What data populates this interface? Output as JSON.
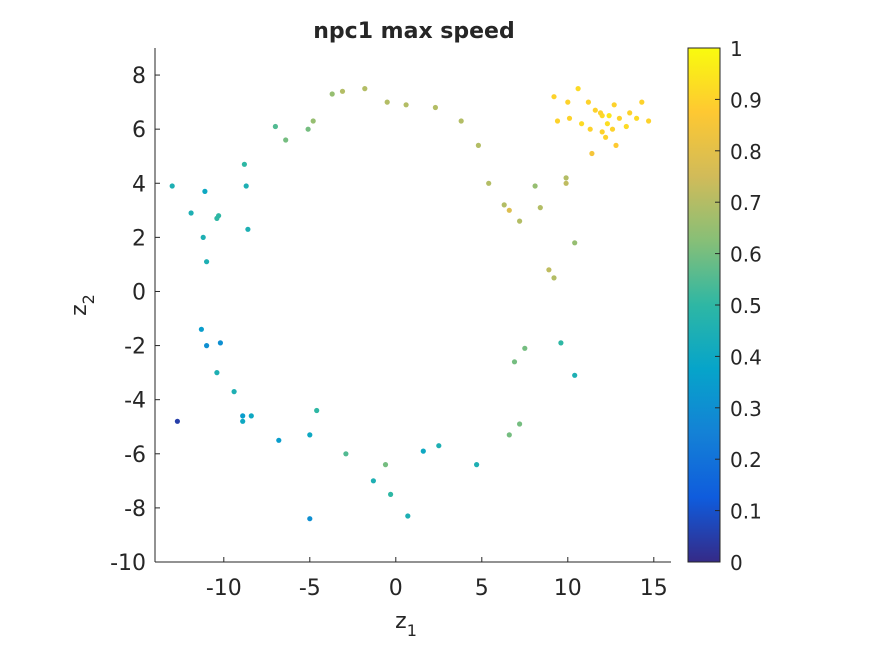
{
  "chart_data": {
    "type": "scatter",
    "title": "npc1 max speed",
    "xlabel": "z",
    "xlabel_sub": "1",
    "ylabel": "z",
    "ylabel_sub": "2",
    "xlim": [
      -14,
      16
    ],
    "ylim": [
      -10,
      9
    ],
    "xticks": [
      -10,
      -5,
      0,
      5,
      10,
      15
    ],
    "xtick_labels": [
      "-10",
      "-5",
      "0",
      "5",
      "10",
      "15"
    ],
    "yticks": [
      -10,
      -8,
      -6,
      -4,
      -2,
      0,
      2,
      4,
      6,
      8
    ],
    "ytick_labels": [
      "-10",
      "-8",
      "-6",
      "-4",
      "-2",
      "0",
      "2",
      "4",
      "6",
      "8"
    ],
    "grid": false,
    "colormap": "parula",
    "colorbar": {
      "range": [
        0,
        1
      ],
      "ticks": [
        0,
        0.1,
        0.2,
        0.3,
        0.4,
        0.5,
        0.6,
        0.7,
        0.8,
        0.9,
        1
      ],
      "tick_labels": [
        "0",
        "0.1",
        "0.2",
        "0.3",
        "0.4",
        "0.5",
        "0.6",
        "0.7",
        "0.8",
        "0.9",
        "1"
      ],
      "colors": [
        "#352a87",
        "#0f5cdd",
        "#1481d6",
        "#06a4ca",
        "#2eb7a4",
        "#87bf77",
        "#d1bb59",
        "#fec832",
        "#f9fb0e"
      ]
    },
    "series": [
      {
        "points": [
          [
            -12.7,
            -4.8,
            0.05
          ],
          [
            -5.0,
            -8.4,
            0.3
          ],
          [
            0.7,
            -8.3,
            0.45
          ],
          [
            -1.3,
            -7.0,
            0.45
          ],
          [
            -0.3,
            -7.5,
            0.5
          ],
          [
            -6.8,
            -5.5,
            0.35
          ],
          [
            -5.0,
            -5.3,
            0.4
          ],
          [
            -8.9,
            -4.6,
            0.35
          ],
          [
            -8.4,
            -4.6,
            0.4
          ],
          [
            -8.9,
            -4.8,
            0.4
          ],
          [
            -10.4,
            -3.0,
            0.45
          ],
          [
            -9.4,
            -3.7,
            0.45
          ],
          [
            -10.2,
            -1.9,
            0.3
          ],
          [
            -11.3,
            -1.4,
            0.35
          ],
          [
            -11.0,
            -2.0,
            0.3
          ],
          [
            -13.0,
            3.9,
            0.45
          ],
          [
            -11.9,
            2.9,
            0.45
          ],
          [
            -11.2,
            2.0,
            0.45
          ],
          [
            -11.1,
            3.7,
            0.4
          ],
          [
            -11.0,
            1.1,
            0.45
          ],
          [
            -10.4,
            2.7,
            0.5
          ],
          [
            -10.3,
            2.8,
            0.5
          ],
          [
            -8.8,
            4.7,
            0.5
          ],
          [
            -8.7,
            3.9,
            0.45
          ],
          [
            -8.6,
            2.3,
            0.45
          ],
          [
            -7.0,
            6.1,
            0.55
          ],
          [
            -6.4,
            5.6,
            0.6
          ],
          [
            -5.1,
            6.0,
            0.6
          ],
          [
            -4.8,
            6.3,
            0.65
          ],
          [
            -3.7,
            7.3,
            0.65
          ],
          [
            -3.1,
            7.4,
            0.7
          ],
          [
            -1.8,
            7.5,
            0.7
          ],
          [
            -0.5,
            7.0,
            0.7
          ],
          [
            0.6,
            6.9,
            0.7
          ],
          [
            2.3,
            6.8,
            0.7
          ],
          [
            3.8,
            6.3,
            0.7
          ],
          [
            4.8,
            5.4,
            0.7
          ],
          [
            5.4,
            4.0,
            0.7
          ],
          [
            6.3,
            3.2,
            0.7
          ],
          [
            6.6,
            3.0,
            0.78
          ],
          [
            7.2,
            2.6,
            0.7
          ],
          [
            8.1,
            3.9,
            0.65
          ],
          [
            8.4,
            3.1,
            0.7
          ],
          [
            9.9,
            4.2,
            0.7
          ],
          [
            9.9,
            4.0,
            0.72
          ],
          [
            10.4,
            1.8,
            0.65
          ],
          [
            9.2,
            0.5,
            0.7
          ],
          [
            8.9,
            0.8,
            0.72
          ],
          [
            7.5,
            -2.1,
            0.6
          ],
          [
            6.9,
            -2.6,
            0.6
          ],
          [
            9.6,
            -1.9,
            0.5
          ],
          [
            10.4,
            -3.1,
            0.45
          ],
          [
            7.2,
            -4.9,
            0.6
          ],
          [
            6.6,
            -5.3,
            0.6
          ],
          [
            4.7,
            -6.4,
            0.45
          ],
          [
            2.5,
            -5.7,
            0.45
          ],
          [
            1.6,
            -5.9,
            0.4
          ],
          [
            -0.6,
            -6.4,
            0.6
          ],
          [
            -2.9,
            -6.0,
            0.55
          ],
          [
            -4.6,
            -4.4,
            0.5
          ],
          [
            9.2,
            7.2,
            0.9
          ],
          [
            10.0,
            7.0,
            0.9
          ],
          [
            10.6,
            7.5,
            0.92
          ],
          [
            11.2,
            7.0,
            0.9
          ],
          [
            11.6,
            6.7,
            0.9
          ],
          [
            12.0,
            6.5,
            0.92
          ],
          [
            12.3,
            6.2,
            0.93
          ],
          [
            12.6,
            6.0,
            0.9
          ],
          [
            12.2,
            5.7,
            0.9
          ],
          [
            12.8,
            5.4,
            0.88
          ],
          [
            13.0,
            6.4,
            0.9
          ],
          [
            13.6,
            6.6,
            0.9
          ],
          [
            14.0,
            6.4,
            0.92
          ],
          [
            14.3,
            7.0,
            0.9
          ],
          [
            14.7,
            6.3,
            0.9
          ],
          [
            9.4,
            6.3,
            0.9
          ],
          [
            10.1,
            6.4,
            0.9
          ],
          [
            10.8,
            6.2,
            0.92
          ],
          [
            11.3,
            6.0,
            0.9
          ],
          [
            11.4,
            5.1,
            0.85
          ],
          [
            12.0,
            5.9,
            0.9
          ],
          [
            12.7,
            6.9,
            0.9
          ],
          [
            13.4,
            6.1,
            0.92
          ],
          [
            11.9,
            6.6,
            0.9
          ],
          [
            12.4,
            6.5,
            0.95
          ]
        ]
      }
    ]
  }
}
